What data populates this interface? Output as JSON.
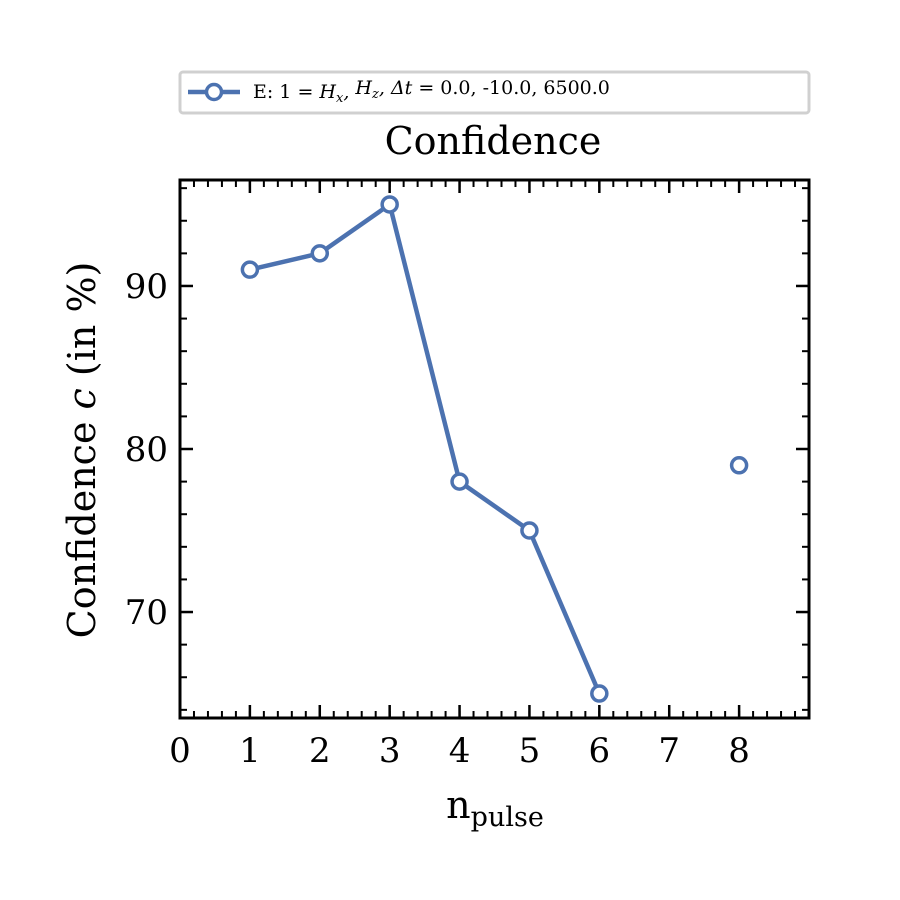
{
  "chart_data": {
    "type": "line",
    "title": "Confidence",
    "xlabel_main": "n",
    "xlabel_sub": "pulse",
    "ylabel_text": "Confidence ",
    "ylabel_var": "c",
    "ylabel_unit": " (in %)",
    "xlim": [
      0,
      9
    ],
    "ylim": [
      63.5,
      96.5
    ],
    "x_ticks": [
      0,
      1,
      2,
      3,
      4,
      5,
      6,
      7,
      8
    ],
    "y_ticks": [
      70,
      80,
      90
    ],
    "legend_position": "top-center",
    "series": [
      {
        "legend_prefix": "E: 1 = ",
        "legend_math": "Hₓ, Hₓ, Δt = ",
        "legend_values": " 0.0, -10.0, 6500.0",
        "color": "#4c72b0",
        "segments": [
          [
            {
              "x": 1,
              "y": 91
            },
            {
              "x": 2,
              "y": 92
            },
            {
              "x": 3,
              "y": 95
            },
            {
              "x": 4,
              "y": 78
            },
            {
              "x": 5,
              "y": 75
            },
            {
              "x": 6,
              "y": 65
            }
          ],
          [
            {
              "x": 8,
              "y": 79
            }
          ]
        ]
      }
    ]
  }
}
